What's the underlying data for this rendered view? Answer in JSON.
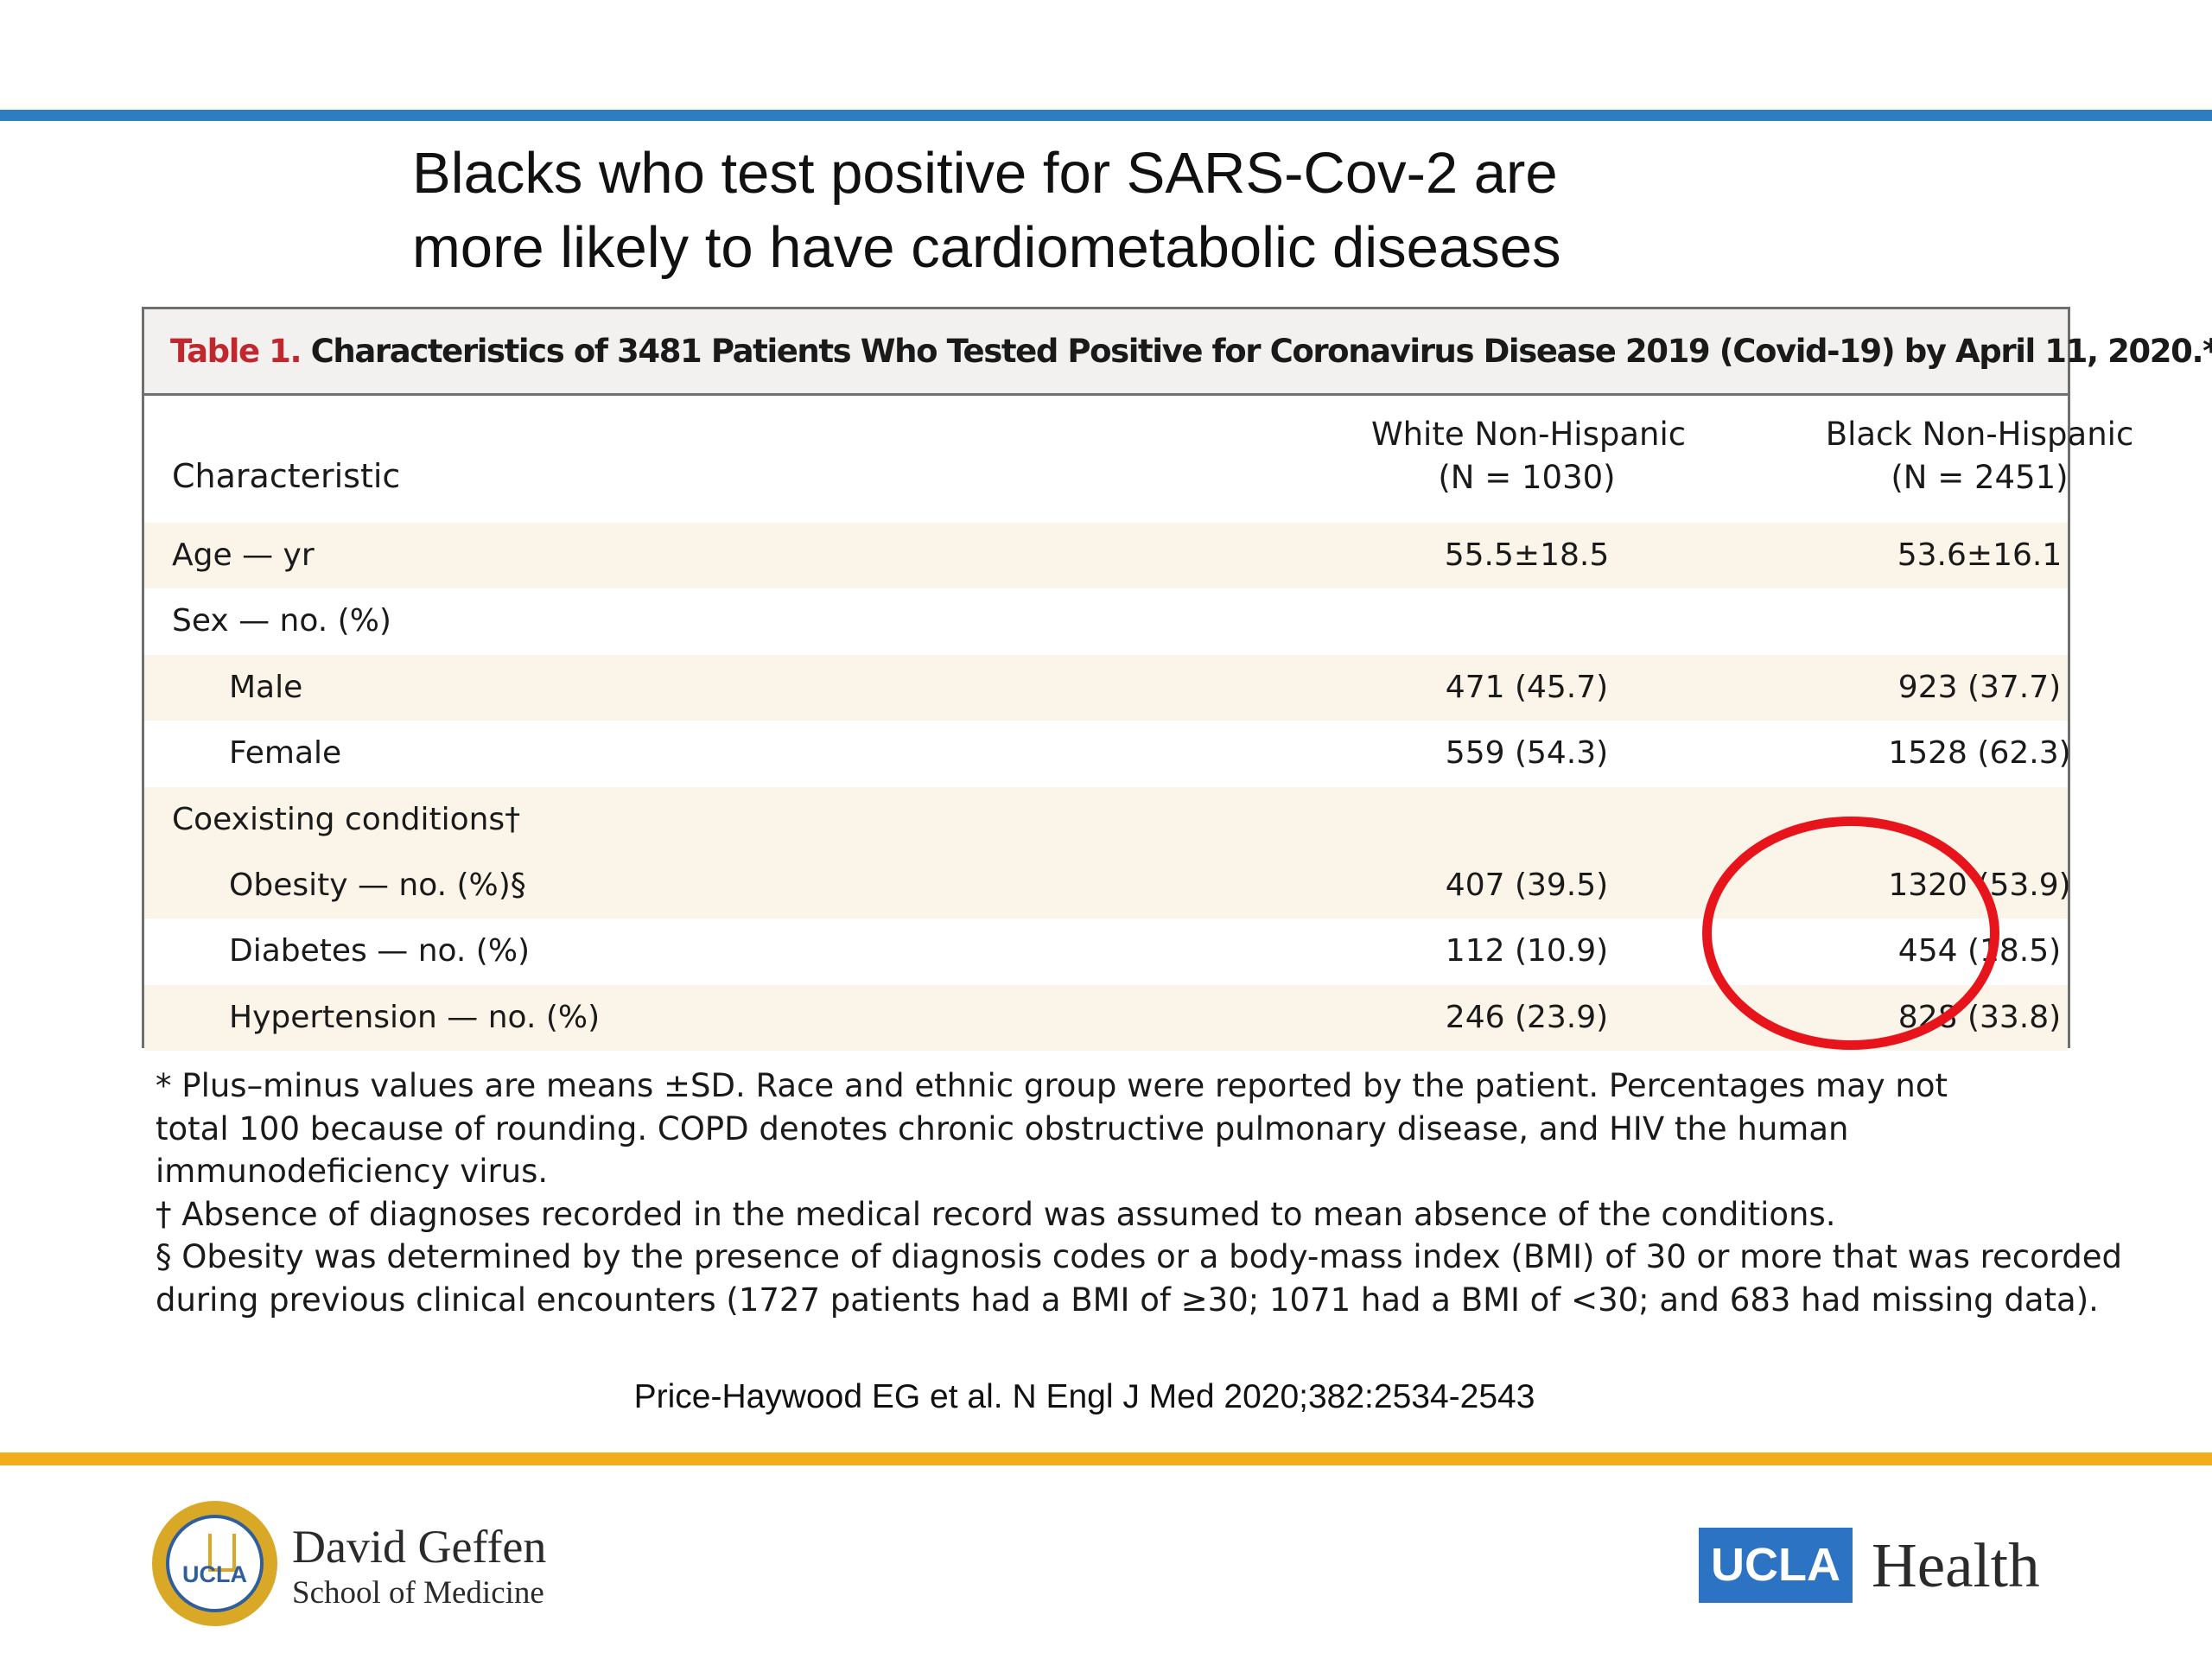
{
  "colors": {
    "top_rule": "#2e7dbf",
    "bottom_rule": "#f2ad1c",
    "highlight_circle": "#e8141b",
    "caption_label": "#c0282d",
    "shade_row": "#fbf4e8"
  },
  "slide": {
    "title_lines": [
      "Blacks who test positive for SARS-Cov-2 are",
      "more likely to have cardiometabolic diseases"
    ]
  },
  "table": {
    "caption_label": "Table 1.",
    "caption_text": "Characteristics of 3481 Patients Who Tested Positive for Coronavirus Disease 2019 (Covid-19) by April 11, 2020.*",
    "header": {
      "characteristic": "Characteristic",
      "col1_line1": "White  Non-Hispanic",
      "col1_line2": "(N = 1030)",
      "col2_line1": "Black  Non-Hispanic",
      "col2_line2": "(N = 2451)"
    },
    "rows": [
      {
        "label": "Age — yr",
        "white": "55.5±18.5",
        "black": "53.6±16.1"
      },
      {
        "label": "Sex — no. (%)",
        "white": "",
        "black": ""
      },
      {
        "label": "Male",
        "white": "471 (45.7)",
        "black": "923 (37.7)"
      },
      {
        "label": "Female",
        "white": "559 (54.3)",
        "black": "1528 (62.3)"
      },
      {
        "label": "Coexisting conditions†",
        "white": "",
        "black": ""
      },
      {
        "label": "Obesity — no. (%)§",
        "white": "407 (39.5)",
        "black": "1320 (53.9)"
      },
      {
        "label": "Diabetes — no. (%)",
        "white": "112 (10.9)",
        "black": "454 (18.5)"
      },
      {
        "label": "Hypertension — no. (%)",
        "white": "246 (23.9)",
        "black": "828 (33.8)"
      }
    ]
  },
  "footnotes": [
    "* Plus–minus values are means ±SD. Race and ethnic group were reported by the patient. Percentages may not",
    "total 100 because of rounding. COPD denotes chronic obstructive pulmonary disease, and HIV the human",
    "immunodeficiency virus.",
    "† Absence of diagnoses recorded in the medical record was assumed to mean absence of the conditions.",
    "§ Obesity was determined by the presence of diagnosis codes or a body-mass index (BMI) of 30 or more that was recorded",
    "during previous clinical encounters (1727 patients had a BMI of ≥30; 1071 had a BMI of <30; and 683 had missing data)."
  ],
  "citation": "Price-Haywood EG et al. N Engl J Med 2020;382:2534-2543",
  "logos": {
    "dgsom_seal_text": "UCLA",
    "dgsom_line1": "David Geffen",
    "dgsom_line2": "School of Medicine",
    "ucla_box": "UCLA",
    "health_word": "Health"
  }
}
